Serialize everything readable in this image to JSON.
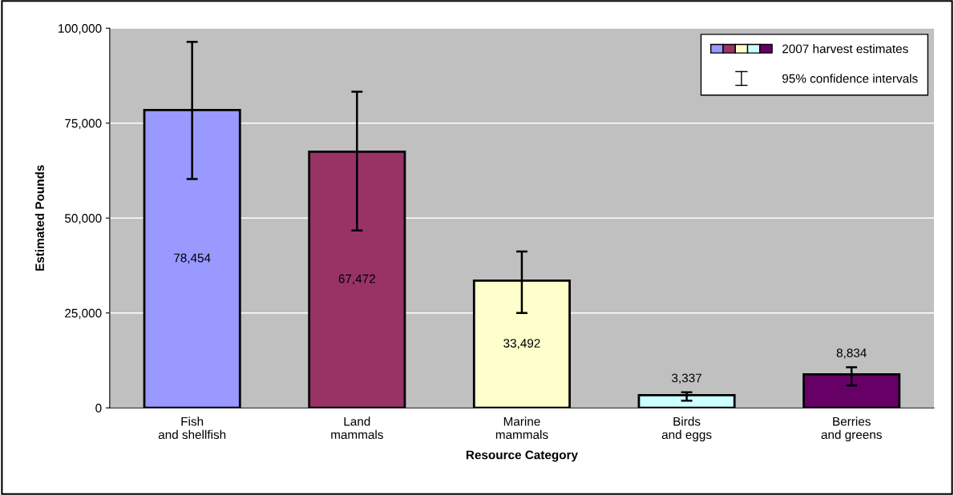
{
  "chart_data": {
    "type": "bar",
    "xlabel": "Resource Category",
    "ylabel": "Estimated Pounds",
    "categories": [
      "Fish\nand shellfish",
      "Land\nmammals",
      "Marine\nmammals",
      "Birds\nand eggs",
      "Berries\nand greens"
    ],
    "series": [
      {
        "name": "2007 harvest estimates",
        "values": [
          78454,
          67472,
          33492,
          3337,
          8834
        ],
        "colors": [
          "#9999ff",
          "#993366",
          "#ffffcc",
          "#ccffff",
          "#660066"
        ],
        "value_labels": [
          "78,454",
          "67,472",
          "33,492",
          "3,337",
          "8,834"
        ],
        "errors": [
          [
            60300,
            96400
          ],
          [
            46700,
            83300
          ],
          [
            25000,
            41200
          ],
          [
            1900,
            4100
          ],
          [
            5900,
            10700
          ]
        ]
      }
    ],
    "ylim": [
      0,
      100000
    ],
    "yticks": [
      {
        "value": 0,
        "label": "0"
      },
      {
        "value": 25000,
        "label": "25,000"
      },
      {
        "value": 50000,
        "label": "50,000"
      },
      {
        "value": 75000,
        "label": "75,000"
      },
      {
        "value": 100000,
        "label": "100,000"
      }
    ],
    "grid": "y",
    "legend": "top right",
    "annotations": [
      "95% confidence intervals"
    ]
  }
}
